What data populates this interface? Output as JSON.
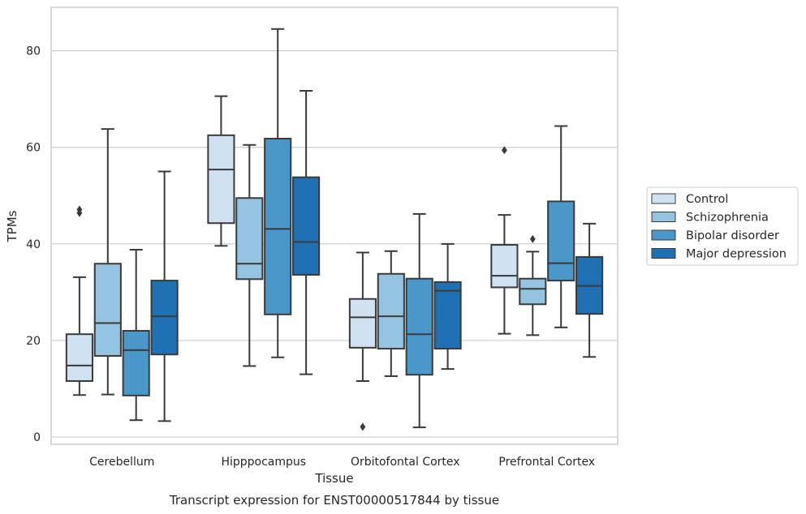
{
  "chart_data": {
    "type": "box",
    "xlabel": "Tissue",
    "ylabel": "TPMs",
    "caption": "Transcript expression for ENST00000517844 by tissue",
    "categories": [
      "Cerebellum",
      "Hipppocampus",
      "Orbitofontal Cortex",
      "Prefrontal Cortex"
    ],
    "ylim": [
      -1.5,
      89
    ],
    "yticks": [
      0,
      20,
      40,
      60,
      80
    ],
    "grid": "horizontal",
    "legend_position": "right",
    "series": [
      {
        "name": "Control",
        "color": "#d0e1f2",
        "boxes": [
          {
            "category": "Cerebellum",
            "whisker_low": 8.7,
            "q1": 11.6,
            "median": 14.8,
            "q3": 21.3,
            "whisker_high": 33.1,
            "outliers": [
              46.4,
              47.1
            ]
          },
          {
            "category": "Hipppocampus",
            "whisker_low": 39.6,
            "q1": 44.3,
            "median": 55.4,
            "q3": 62.5,
            "whisker_high": 70.6,
            "outliers": []
          },
          {
            "category": "Orbitofontal Cortex",
            "whisker_low": 11.6,
            "q1": 18.5,
            "median": 24.8,
            "q3": 28.6,
            "whisker_high": 38.2,
            "outliers": [
              2.1
            ]
          },
          {
            "category": "Prefrontal Cortex",
            "whisker_low": 21.4,
            "q1": 31.0,
            "median": 33.4,
            "q3": 39.8,
            "whisker_high": 46.0,
            "outliers": [
              59.4
            ]
          }
        ]
      },
      {
        "name": "Schizophrenia",
        "color": "#94c4df",
        "boxes": [
          {
            "category": "Cerebellum",
            "whisker_low": 8.8,
            "q1": 16.8,
            "median": 23.6,
            "q3": 35.9,
            "whisker_high": 63.8,
            "outliers": []
          },
          {
            "category": "Hipppocampus",
            "whisker_low": 14.7,
            "q1": 32.7,
            "median": 35.9,
            "q3": 49.5,
            "whisker_high": 60.5,
            "outliers": []
          },
          {
            "category": "Orbitofontal Cortex",
            "whisker_low": 12.6,
            "q1": 18.3,
            "median": 25.0,
            "q3": 33.8,
            "whisker_high": 38.5,
            "outliers": []
          },
          {
            "category": "Prefrontal Cortex",
            "whisker_low": 21.1,
            "q1": 27.5,
            "median": 30.7,
            "q3": 32.8,
            "whisker_high": 38.4,
            "outliers": [
              41.0
            ]
          }
        ]
      },
      {
        "name": "Bipolar disorder",
        "color": "#4a98c9",
        "boxes": [
          {
            "category": "Cerebellum",
            "whisker_low": 3.5,
            "q1": 8.6,
            "median": 18.0,
            "q3": 22.0,
            "whisker_high": 38.8,
            "outliers": []
          },
          {
            "category": "Hipppocampus",
            "whisker_low": 16.5,
            "q1": 25.4,
            "median": 43.1,
            "q3": 61.8,
            "whisker_high": 84.5,
            "outliers": []
          },
          {
            "category": "Orbitofontal Cortex",
            "whisker_low": 2.0,
            "q1": 12.9,
            "median": 21.3,
            "q3": 32.8,
            "whisker_high": 46.2,
            "outliers": []
          },
          {
            "category": "Prefrontal Cortex",
            "whisker_low": 22.7,
            "q1": 32.4,
            "median": 36.0,
            "q3": 48.8,
            "whisker_high": 64.4,
            "outliers": []
          }
        ]
      },
      {
        "name": "Major depression",
        "color": "#2070b4",
        "boxes": [
          {
            "category": "Cerebellum",
            "whisker_low": 3.3,
            "q1": 17.1,
            "median": 25.0,
            "q3": 32.4,
            "whisker_high": 55.0,
            "outliers": []
          },
          {
            "category": "Hipppocampus",
            "whisker_low": 13.0,
            "q1": 33.6,
            "median": 40.4,
            "q3": 53.8,
            "whisker_high": 71.7,
            "outliers": []
          },
          {
            "category": "Orbitofontal Cortex",
            "whisker_low": 14.1,
            "q1": 18.3,
            "median": 30.3,
            "q3": 32.1,
            "whisker_high": 40.0,
            "outliers": []
          },
          {
            "category": "Prefrontal Cortex",
            "whisker_low": 16.6,
            "q1": 25.5,
            "median": 31.3,
            "q3": 37.3,
            "whisker_high": 44.2,
            "outliers": []
          }
        ]
      }
    ]
  }
}
